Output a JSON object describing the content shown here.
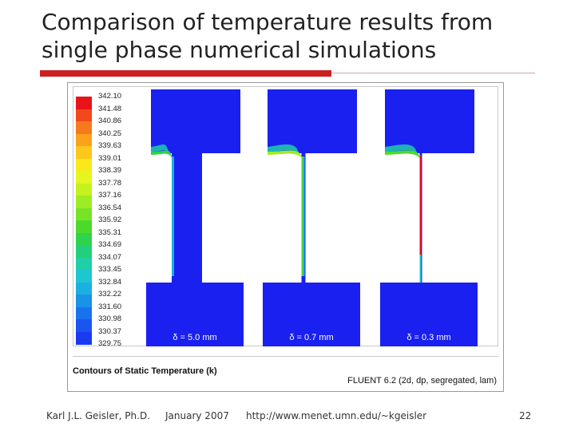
{
  "slide": {
    "title_line1": "Comparison of temperature results from",
    "title_line2": "single phase numerical simulations"
  },
  "figure": {
    "caption_left": "Contours of Static Temperature (k)",
    "caption_right": "FLUENT 6.2 (2d, dp, segregated, lam)",
    "scale_labels": [
      "342.10",
      "341.48",
      "340.86",
      "340.25",
      "339.63",
      "339.01",
      "338.39",
      "337.78",
      "337.16",
      "336.54",
      "335.92",
      "335.31",
      "334.69",
      "334.07",
      "333.45",
      "332.84",
      "332.22",
      "331.60",
      "330.98",
      "330.37",
      "329.75"
    ],
    "scale_colors": [
      "#e8141a",
      "#f2481c",
      "#f7791d",
      "#fba21c",
      "#fdc71b",
      "#fbe81a",
      "#e6f51d",
      "#c4f21f",
      "#9eec23",
      "#77e426",
      "#4dd92b",
      "#2fd24a",
      "#24cf7b",
      "#1ecfa8",
      "#1cc7cf",
      "#1ab0e0",
      "#1a92e8",
      "#1a73ee",
      "#1a55f0",
      "#1a3af2",
      "#1a20f0"
    ],
    "panels": [
      {
        "label": "δ = 5.0 mm",
        "gap": 5.0
      },
      {
        "label": "δ = 0.7 mm",
        "gap": 0.7
      },
      {
        "label": "δ = 0.3 mm",
        "gap": 0.3
      }
    ]
  },
  "footer": {
    "author": "Karl J.L. Geisler, Ph.D.",
    "date": "January 2007",
    "url": "http://www.menet.umn.edu/~kgeisler",
    "page": "22"
  }
}
